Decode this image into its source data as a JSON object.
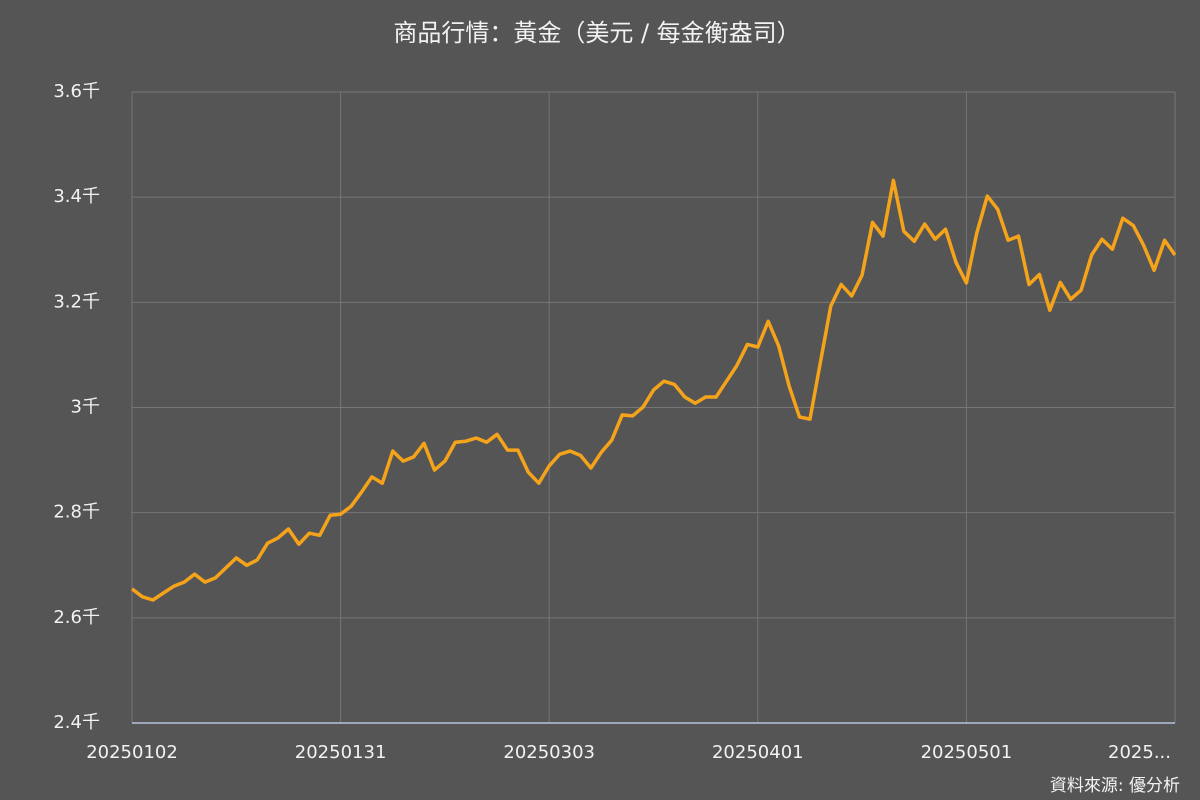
{
  "chart_data": {
    "type": "line",
    "title": "商品行情：黃金（美元 / 每金衡盎司）",
    "source": "資料來源: 優分析",
    "categories": [
      "20250102",
      null,
      null,
      null,
      null,
      null,
      null,
      null,
      null,
      null,
      null,
      null,
      null,
      null,
      null,
      null,
      null,
      null,
      null,
      null,
      "20250131",
      null,
      null,
      null,
      null,
      null,
      null,
      null,
      null,
      null,
      null,
      null,
      null,
      null,
      null,
      null,
      null,
      null,
      null,
      null,
      "20250303",
      null,
      null,
      null,
      null,
      null,
      null,
      null,
      null,
      null,
      null,
      null,
      null,
      null,
      null,
      null,
      null,
      null,
      null,
      null,
      "20250401",
      null,
      null,
      null,
      null,
      null,
      null,
      null,
      null,
      null,
      null,
      null,
      null,
      null,
      null,
      null,
      null,
      null,
      null,
      null,
      "20250501",
      null,
      null,
      null,
      null,
      null,
      null,
      null,
      null,
      null,
      null,
      null,
      null,
      null,
      null,
      null,
      null,
      null,
      null,
      null,
      "2025..."
    ],
    "values": [
      2655,
      2640,
      2634,
      2647,
      2660,
      2668,
      2683,
      2668,
      2676,
      2695,
      2714,
      2700,
      2710,
      2742,
      2752,
      2769,
      2740,
      2761,
      2757,
      2795,
      2797,
      2812,
      2839,
      2868,
      2856,
      2917,
      2898,
      2906,
      2932,
      2881,
      2898,
      2934,
      2936,
      2942,
      2934,
      2949,
      2919,
      2919,
      2877,
      2856,
      2889,
      2911,
      2917,
      2909,
      2885,
      2915,
      2938,
      2986,
      2984,
      3001,
      3033,
      3050,
      3044,
      3020,
      3008,
      3020,
      3020,
      3050,
      3080,
      3120,
      3115,
      3164,
      3117,
      3041,
      2982,
      2978,
      3086,
      3193,
      3234,
      3212,
      3252,
      3352,
      3326,
      3432,
      3335,
      3316,
      3349,
      3320,
      3339,
      3276,
      3237,
      3332,
      3402,
      3377,
      3318,
      3326,
      3234,
      3253,
      3185,
      3238,
      3206,
      3223,
      3290,
      3320,
      3301,
      3360,
      3346,
      3308,
      3261,
      3318,
      3290
    ],
    "color": "#f5a31a",
    "ylim": [
      2400,
      3600
    ],
    "yticks": [
      {
        "value": 2400,
        "label": "2.4千"
      },
      {
        "value": 2600,
        "label": "2.6千"
      },
      {
        "value": 2800,
        "label": "2.8千"
      },
      {
        "value": 3000,
        "label": "3千"
      },
      {
        "value": 3200,
        "label": "3.2千"
      },
      {
        "value": 3400,
        "label": "3.4千"
      },
      {
        "value": 3600,
        "label": "3.6千"
      }
    ],
    "grid": true
  }
}
